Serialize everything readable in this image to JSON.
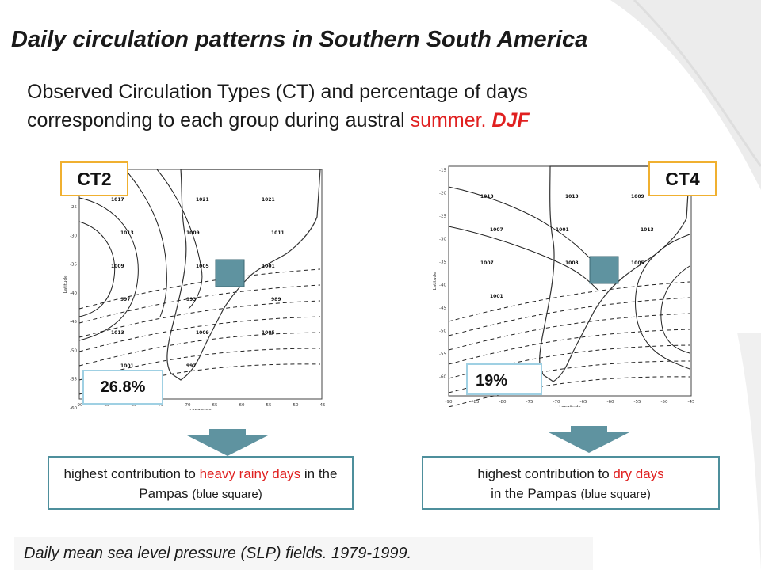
{
  "title": "Daily circulation patterns in Southern South America",
  "subtitle": {
    "line1": "Observed Circulation Types (CT) and percentage of days",
    "line2_a": "corresponding to each group during austral ",
    "line2_red": "summer.",
    "line2_djf": "DJF"
  },
  "panels": [
    {
      "ct_label": "CT2",
      "percent": "26.8%",
      "desc_a": "highest contribution to ",
      "desc_red": "heavy rainy days",
      "desc_b": " in the Pampas ",
      "desc_small": "(blue square)",
      "y_ticks": [
        "-25",
        "-30",
        "-35",
        "-40",
        "-45",
        "-50",
        "-55",
        "-60"
      ],
      "x_ticks": [
        "-90",
        "-85",
        "-80",
        "-75",
        "-70",
        "-65",
        "-60",
        "-55",
        "-50",
        "-45"
      ],
      "isobar_labels": [
        "1017",
        "1021",
        "1021",
        "1013",
        "1009",
        "1011",
        "1009",
        "1005",
        "1001",
        "997",
        "993",
        "989",
        "1013",
        "1009",
        "1005",
        "1001",
        "997"
      ],
      "x_axis_label": "Longitude",
      "y_axis_label": "Latitude"
    },
    {
      "ct_label": "CT4",
      "percent": "19%",
      "desc_a": "highest contribution to ",
      "desc_red": "dry days",
      "desc_b": " in the Pampas ",
      "desc_small": "(blue square)",
      "y_ticks": [
        "-15",
        "-20",
        "-25",
        "-30",
        "-35",
        "-40",
        "-45",
        "-50",
        "-55",
        "-60"
      ],
      "x_ticks": [
        "-90",
        "-85",
        "-80",
        "-75",
        "-70",
        "-65",
        "-60",
        "-55",
        "-50",
        "-45"
      ],
      "isobar_labels": [
        "1013",
        "1013",
        "1009",
        "1007",
        "1001",
        "1013",
        "1007",
        "1003",
        "1005",
        "1001"
      ],
      "x_axis_label": "Longitude",
      "y_axis_label": "Latitude"
    }
  ],
  "footer": "Daily mean sea level pressure (SLP) fields. 1979-1999.",
  "colors": {
    "accent_red": "#e02020",
    "ct_border": "#f0b030",
    "percent_border": "#9fd0e3",
    "pampas_square": "#5f93a0",
    "arrow": "#5f93a0",
    "desc_border": "#4e8f9c"
  },
  "icons": {
    "arrow": "down-arrow-icon",
    "square": "pampas-square-marker"
  }
}
